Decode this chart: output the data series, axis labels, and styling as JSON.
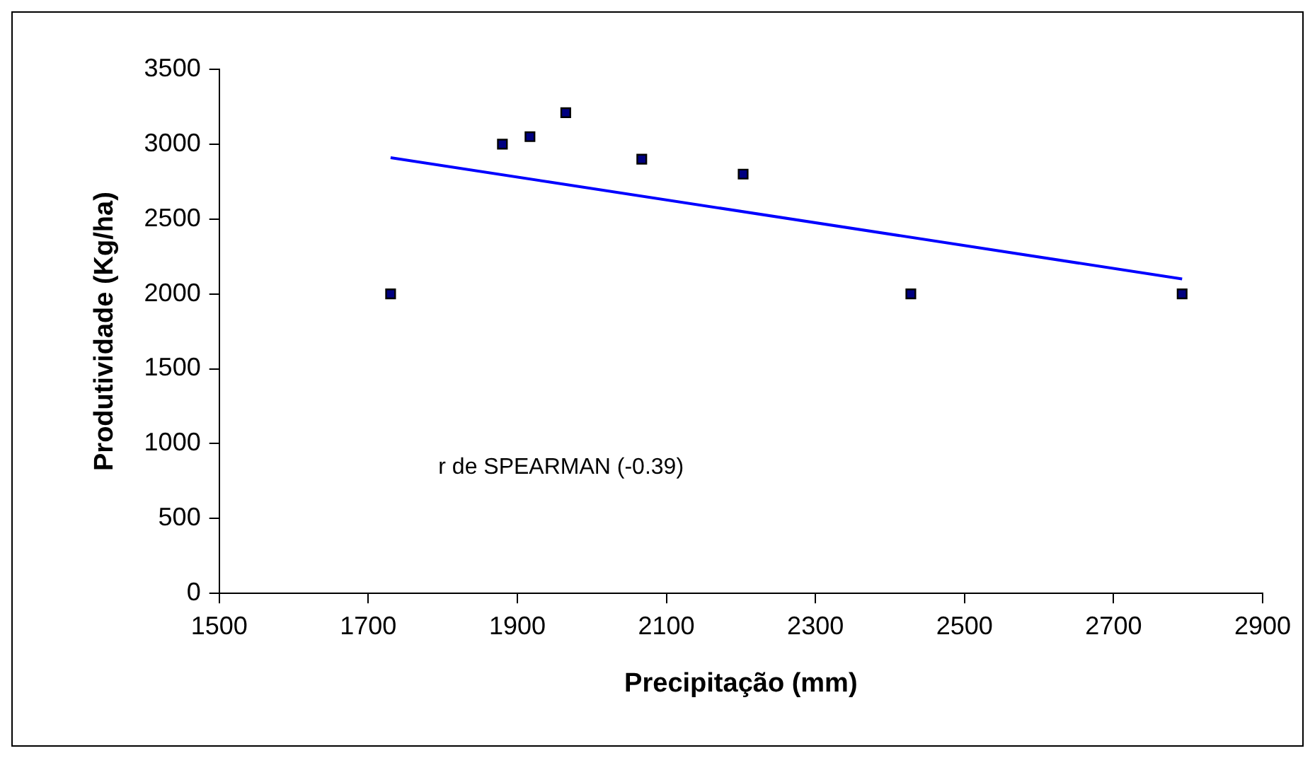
{
  "chart_data": {
    "type": "scatter",
    "xlabel": "Precipitação (mm)",
    "ylabel": "Produtividade (Kg/ha)",
    "annotations": [
      "r de SPEARMAN (-0.39)"
    ],
    "series": [
      {
        "color": "#000080",
        "x": [
          1730,
          1880,
          1917,
          1965,
          2067,
          2203,
          2428,
          2792
        ],
        "values": [
          2000,
          3000,
          3050,
          3210,
          2900,
          2800,
          2000,
          2000
        ],
        "marker": "square"
      },
      {
        "type": "line",
        "color": "#0000ff",
        "x": [
          1730,
          2792
        ],
        "values": [
          2910,
          2100
        ],
        "marker": "none",
        "line_style": "solid"
      }
    ],
    "xlim": [
      1500,
      2900
    ],
    "xticks": [
      1500,
      1700,
      1900,
      2100,
      2300,
      2500,
      2700,
      2900
    ],
    "ylim": [
      0,
      3500
    ],
    "yticks": [
      0,
      500,
      1000,
      1500,
      2000,
      2500,
      3000,
      3500
    ],
    "grid": false,
    "legend": false
  }
}
